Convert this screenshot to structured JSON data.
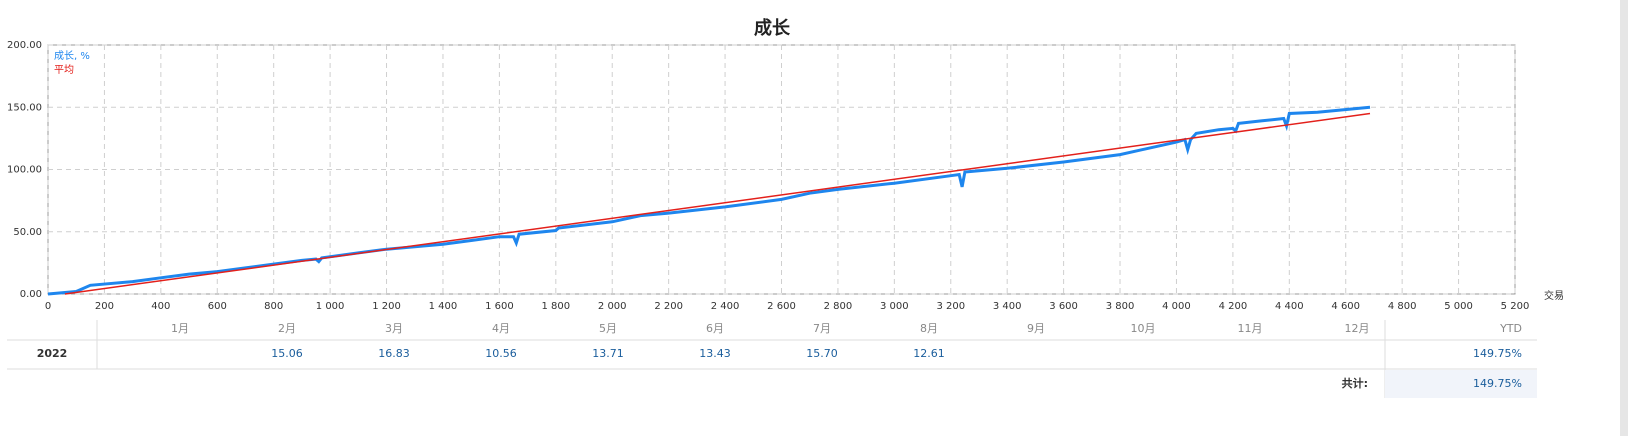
{
  "chart_data": {
    "type": "line",
    "title": "成长",
    "x_label": "交易",
    "xlim": [
      0,
      5200
    ],
    "xticks": [
      0,
      200,
      400,
      600,
      800,
      {
        "value": 1000,
        "label": "1 000"
      },
      {
        "value": 1200,
        "label": "1 200"
      },
      {
        "value": 1400,
        "label": "1 400"
      },
      {
        "value": 1600,
        "label": "1 600"
      },
      {
        "value": 1800,
        "label": "1 800"
      },
      {
        "value": 2000,
        "label": "2 000"
      },
      {
        "value": 2200,
        "label": "2 200"
      },
      {
        "value": 2400,
        "label": "2 400"
      },
      {
        "value": 2600,
        "label": "2 600"
      },
      {
        "value": 2800,
        "label": "2 800"
      },
      {
        "value": 3000,
        "label": "3 000"
      },
      {
        "value": 3200,
        "label": "3 200"
      },
      {
        "value": 3400,
        "label": "3 400"
      },
      {
        "value": 3600,
        "label": "3 600"
      },
      {
        "value": 3800,
        "label": "3 800"
      },
      {
        "value": 4000,
        "label": "4 000"
      },
      {
        "value": 4200,
        "label": "4 200"
      },
      {
        "value": 4400,
        "label": "4 400"
      },
      {
        "value": 4600,
        "label": "4 600"
      },
      {
        "value": 4800,
        "label": "4 800"
      },
      {
        "value": 5000,
        "label": "5 000"
      },
      {
        "value": 5200,
        "label": "5 200"
      }
    ],
    "ylim": [
      0,
      200
    ],
    "yticks": [
      {
        "value": 0,
        "label": "0.00"
      },
      {
        "value": 50,
        "label": "50.00"
      },
      {
        "value": 100,
        "label": "100.00"
      },
      {
        "value": 150,
        "label": "150.00"
      },
      {
        "value": 200,
        "label": "200.00"
      }
    ],
    "grid": true,
    "legend": "top-left",
    "series": [
      {
        "name": "成长, %",
        "color": "#1e86ee",
        "x": [
          0,
          100,
          150,
          300,
          400,
          500,
          600,
          700,
          800,
          900,
          950,
          960,
          970,
          1100,
          1200,
          1400,
          1500,
          1600,
          1650,
          1660,
          1670,
          1800,
          1810,
          2000,
          2100,
          2200,
          2400,
          2600,
          2700,
          2800,
          3000,
          3200,
          3230,
          3240,
          3250,
          3400,
          3600,
          3800,
          3900,
          4000,
          4030,
          4040,
          4050,
          4070,
          4150,
          4200,
          4210,
          4220,
          4300,
          4380,
          4390,
          4400,
          4500,
          4686
        ],
        "values": [
          0,
          2,
          7,
          10,
          13,
          16,
          18,
          21,
          24,
          27,
          28,
          26,
          29,
          33,
          36,
          40,
          43,
          46,
          46,
          41,
          48,
          51,
          53,
          58,
          63,
          65,
          70,
          76,
          81,
          84,
          89,
          95,
          96,
          86,
          98,
          101,
          106,
          112,
          117,
          122,
          124,
          116,
          124,
          129,
          132,
          133,
          131,
          137,
          139,
          141,
          135,
          145,
          146,
          150
        ]
      },
      {
        "name": "平均",
        "color": "#e3201b",
        "x": [
          60,
          4686
        ],
        "values": [
          0,
          145
        ]
      }
    ]
  },
  "table": {
    "header": [
      "1月",
      "2月",
      "3月",
      "4月",
      "5月",
      "6月",
      "7月",
      "8月",
      "9月",
      "10月",
      "11月",
      "12月",
      "YTD"
    ],
    "rows": [
      [
        "2022",
        null,
        "15.06",
        "16.83",
        "10.56",
        "13.71",
        "13.43",
        "15.70",
        "12.61",
        null,
        null,
        null,
        null,
        "149.75%"
      ]
    ],
    "total_label": "共计:",
    "total_value": "149.75%"
  }
}
